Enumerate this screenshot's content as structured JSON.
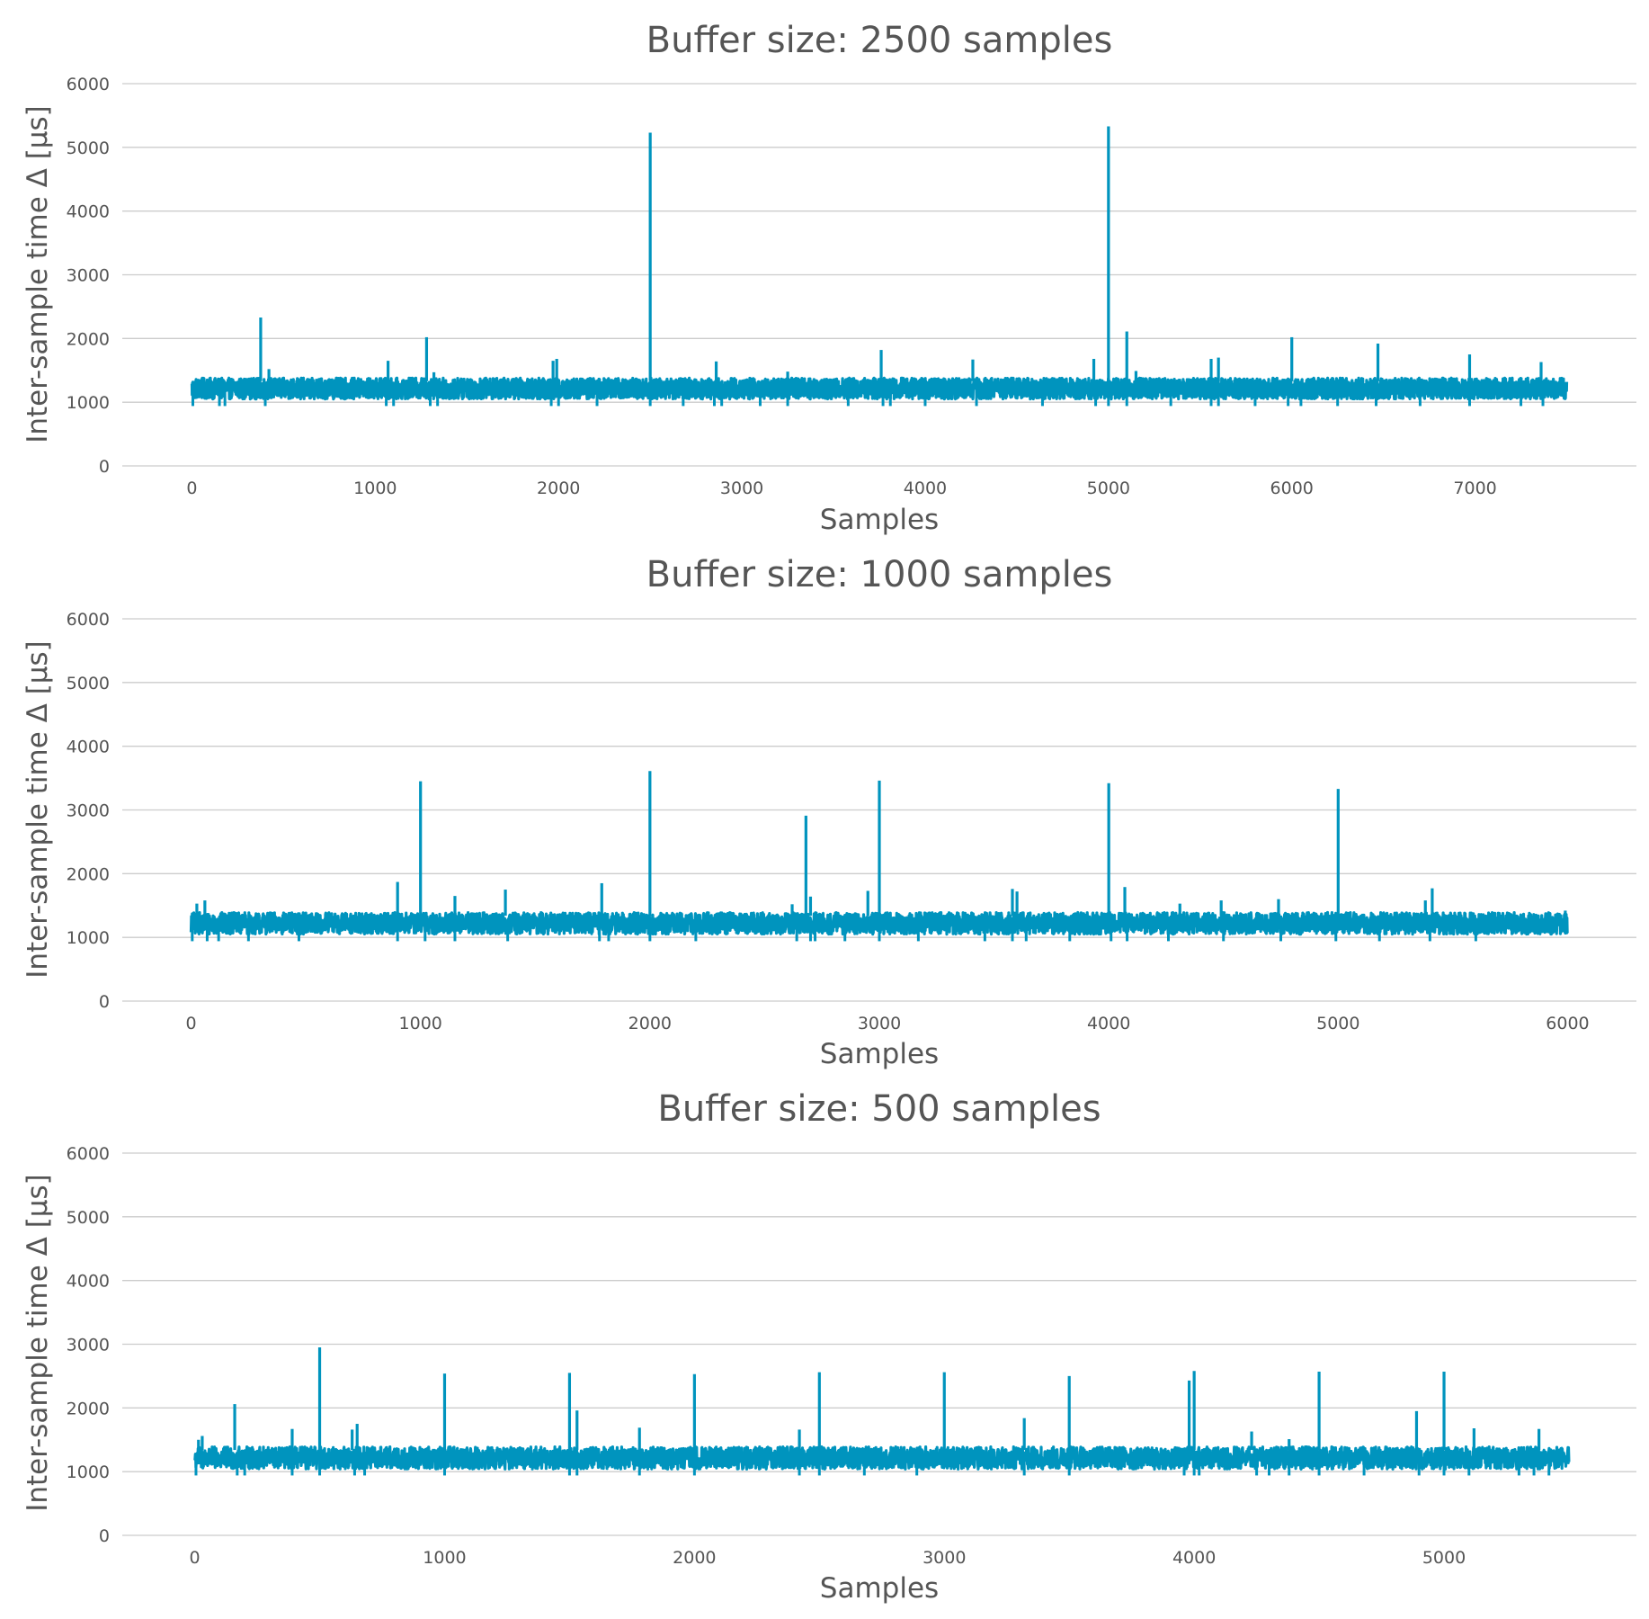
{
  "chart_data": [
    {
      "type": "line",
      "title": "Buffer size: 2500 samples",
      "xlabel": "Samples",
      "ylabel": "Inter-sample time Δ [µs]",
      "xlim": [
        -380,
        7880
      ],
      "ylim": [
        0,
        6000
      ],
      "xticks": [
        0,
        1000,
        2000,
        3000,
        4000,
        5000,
        6000,
        7000
      ],
      "yticks": [
        0,
        1000,
        2000,
        3000,
        4000,
        5000,
        6000
      ],
      "grid": "horizontal",
      "color": "#0094be",
      "n_samples": 7500,
      "baseline": {
        "low": 1050,
        "high": 1380
      },
      "dips": [
        5,
        150,
        180,
        400,
        1060,
        1100,
        1300,
        1340,
        1960,
        2000,
        2210,
        2500,
        2680,
        2850,
        2890,
        3100,
        3250,
        3580,
        3770,
        3810,
        4000,
        4280,
        4640,
        4930,
        5000,
        5100,
        5340,
        5560,
        5600,
        5800,
        5980,
        6050,
        6250,
        6460,
        6700,
        6970,
        7250,
        7370
      ],
      "spikes": [
        [
          10,
          1300
        ],
        [
          375,
          2330
        ],
        [
          420,
          1520
        ],
        [
          1070,
          1650
        ],
        [
          1280,
          2020
        ],
        [
          1320,
          1470
        ],
        [
          1970,
          1650
        ],
        [
          1990,
          1680
        ],
        [
          2500,
          5230
        ],
        [
          2860,
          1640
        ],
        [
          3250,
          1480
        ],
        [
          3760,
          1820
        ],
        [
          4260,
          1670
        ],
        [
          4920,
          1680
        ],
        [
          5000,
          5330
        ],
        [
          5100,
          2110
        ],
        [
          5150,
          1490
        ],
        [
          5560,
          1680
        ],
        [
          5600,
          1700
        ],
        [
          6000,
          2020
        ],
        [
          6470,
          1920
        ],
        [
          6970,
          1750
        ],
        [
          7360,
          1630
        ]
      ]
    },
    {
      "type": "line",
      "title": "Buffer size: 1000 samples",
      "xlabel": "Samples",
      "ylabel": "Inter-sample time Δ [µs]",
      "xlim": [
        -300,
        6300
      ],
      "ylim": [
        0,
        6000
      ],
      "xticks": [
        0,
        1000,
        2000,
        3000,
        4000,
        5000,
        6000
      ],
      "yticks": [
        0,
        1000,
        2000,
        3000,
        4000,
        5000,
        6000
      ],
      "grid": "horizontal",
      "color": "#0094be",
      "n_samples": 6000,
      "baseline": {
        "low": 1050,
        "high": 1390
      },
      "dips": [
        5,
        70,
        120,
        250,
        470,
        900,
        1020,
        1150,
        1380,
        1780,
        1820,
        2000,
        2200,
        2640,
        2700,
        2720,
        2850,
        3000,
        3170,
        3460,
        3580,
        3640,
        3830,
        4010,
        4080,
        4260,
        4500,
        4750,
        4990,
        5180,
        5400,
        5600
      ],
      "spikes": [
        [
          25,
          1530
        ],
        [
          60,
          1580
        ],
        [
          900,
          1870
        ],
        [
          1000,
          3450
        ],
        [
          1150,
          1650
        ],
        [
          1370,
          1750
        ],
        [
          1790,
          1850
        ],
        [
          2000,
          3610
        ],
        [
          2620,
          1520
        ],
        [
          2680,
          2910
        ],
        [
          2700,
          1640
        ],
        [
          2950,
          1730
        ],
        [
          3000,
          3460
        ],
        [
          3580,
          1760
        ],
        [
          3600,
          1720
        ],
        [
          4000,
          3420
        ],
        [
          4070,
          1790
        ],
        [
          4310,
          1530
        ],
        [
          4490,
          1580
        ],
        [
          4740,
          1600
        ],
        [
          5000,
          3330
        ],
        [
          5380,
          1580
        ],
        [
          5410,
          1770
        ],
        [
          5990,
          1420
        ]
      ]
    },
    {
      "type": "line",
      "title": "Buffer size: 500 samples",
      "xlabel": "Samples",
      "ylabel": "Inter-sample time Δ [µs]",
      "xlim": [
        -290,
        5770
      ],
      "ylim": [
        0,
        6000
      ],
      "xticks": [
        0,
        1000,
        2000,
        3000,
        4000,
        5000
      ],
      "yticks": [
        0,
        1000,
        2000,
        3000,
        4000,
        5000,
        6000
      ],
      "grid": "horizontal",
      "color": "#0094be",
      "n_samples": 5500,
      "baseline": {
        "low": 1040,
        "high": 1390
      },
      "dips": [
        5,
        170,
        200,
        390,
        500,
        640,
        680,
        1000,
        1500,
        1530,
        1780,
        2000,
        2420,
        2500,
        2680,
        2890,
        3320,
        3500,
        3960,
        4000,
        4020,
        4250,
        4300,
        4380,
        4500,
        4680,
        4900,
        5000,
        5100,
        5300,
        5360,
        5420
      ],
      "spikes": [
        [
          15,
          1500
        ],
        [
          30,
          1560
        ],
        [
          160,
          2060
        ],
        [
          390,
          1670
        ],
        [
          500,
          2950
        ],
        [
          630,
          1660
        ],
        [
          650,
          1750
        ],
        [
          1000,
          2540
        ],
        [
          1500,
          2550
        ],
        [
          1530,
          1960
        ],
        [
          1780,
          1690
        ],
        [
          2000,
          2530
        ],
        [
          2420,
          1660
        ],
        [
          2500,
          2560
        ],
        [
          3000,
          2560
        ],
        [
          3320,
          1840
        ],
        [
          3500,
          2500
        ],
        [
          3980,
          2430
        ],
        [
          4000,
          2580
        ],
        [
          4230,
          1630
        ],
        [
          4380,
          1510
        ],
        [
          4500,
          2570
        ],
        [
          4890,
          1950
        ],
        [
          5000,
          2570
        ],
        [
          5120,
          1680
        ],
        [
          5380,
          1670
        ]
      ]
    }
  ]
}
